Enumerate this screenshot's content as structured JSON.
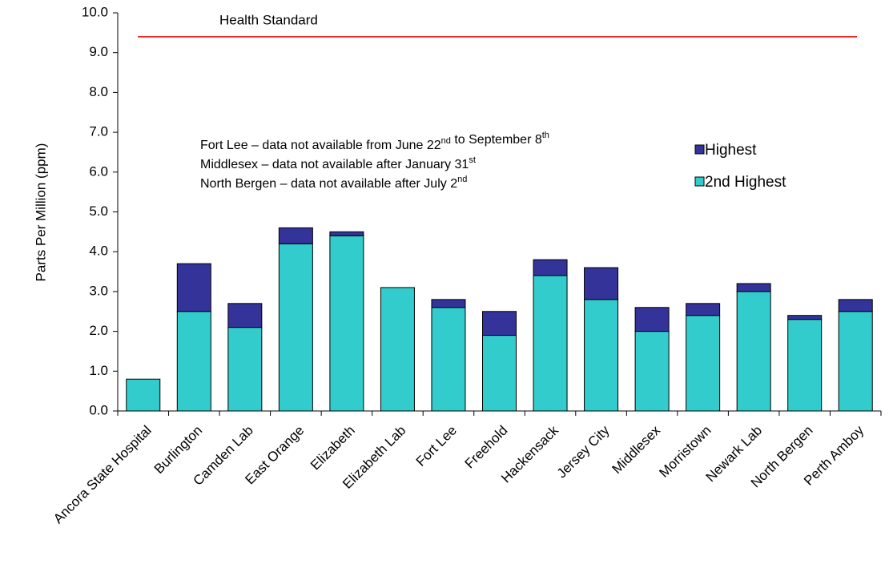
{
  "chart_data": {
    "type": "stacked-bar",
    "y_label": "Parts Per Million (ppm)",
    "categories": [
      "Ancora State Hospital",
      "Burlington",
      "Camden Lab",
      "East Orange",
      "Elizabeth",
      "Elizabeth Lab",
      "Fort Lee",
      "Freehold",
      "Hackensack",
      "Jersey City",
      "Middlesex",
      "Morristown",
      "Newark Lab",
      "North Bergen",
      "Perth Amboy"
    ],
    "series": [
      {
        "name": "2nd Highest",
        "color": "#33cccc",
        "values": [
          0.8,
          2.5,
          2.1,
          4.2,
          4.4,
          3.1,
          2.6,
          1.9,
          3.4,
          2.8,
          2.0,
          2.4,
          3.0,
          2.3,
          2.5
        ]
      },
      {
        "name": "Highest",
        "color": "#333399",
        "values": [
          0,
          1.2,
          0.6,
          0.4,
          0.1,
          0,
          0.2,
          0.6,
          0.4,
          0.8,
          0.6,
          0.3,
          0.2,
          0.1,
          0.3
        ]
      }
    ],
    "ylim": [
      0,
      10
    ],
    "yticks": [
      {
        "value": 0,
        "label": "0.0"
      },
      {
        "value": 1,
        "label": "1.0"
      },
      {
        "value": 2,
        "label": "2.0"
      },
      {
        "value": 3,
        "label": "3.0"
      },
      {
        "value": 4,
        "label": "4.0"
      },
      {
        "value": 5,
        "label": "5.0"
      },
      {
        "value": 6,
        "label": "6.0"
      },
      {
        "value": 7,
        "label": "7.0"
      },
      {
        "value": 8,
        "label": "8.0"
      },
      {
        "value": 9,
        "label": "9.0"
      },
      {
        "value": 10,
        "label": "10.0"
      }
    ],
    "reference_line": {
      "label": "Health Standard",
      "value": 9.4,
      "color": "#ff0000"
    },
    "notes": [
      [
        {
          "text": "Fort Lee – data not available from June 22"
        },
        {
          "sup": "nd"
        },
        {
          "text": " to September 8"
        },
        {
          "sup": "th"
        }
      ],
      [
        {
          "text": "Middlesex – data not available after January 31"
        },
        {
          "sup": "st"
        }
      ],
      [
        {
          "text": "North Bergen – data not available after July 2"
        },
        {
          "sup": "nd"
        }
      ]
    ]
  }
}
